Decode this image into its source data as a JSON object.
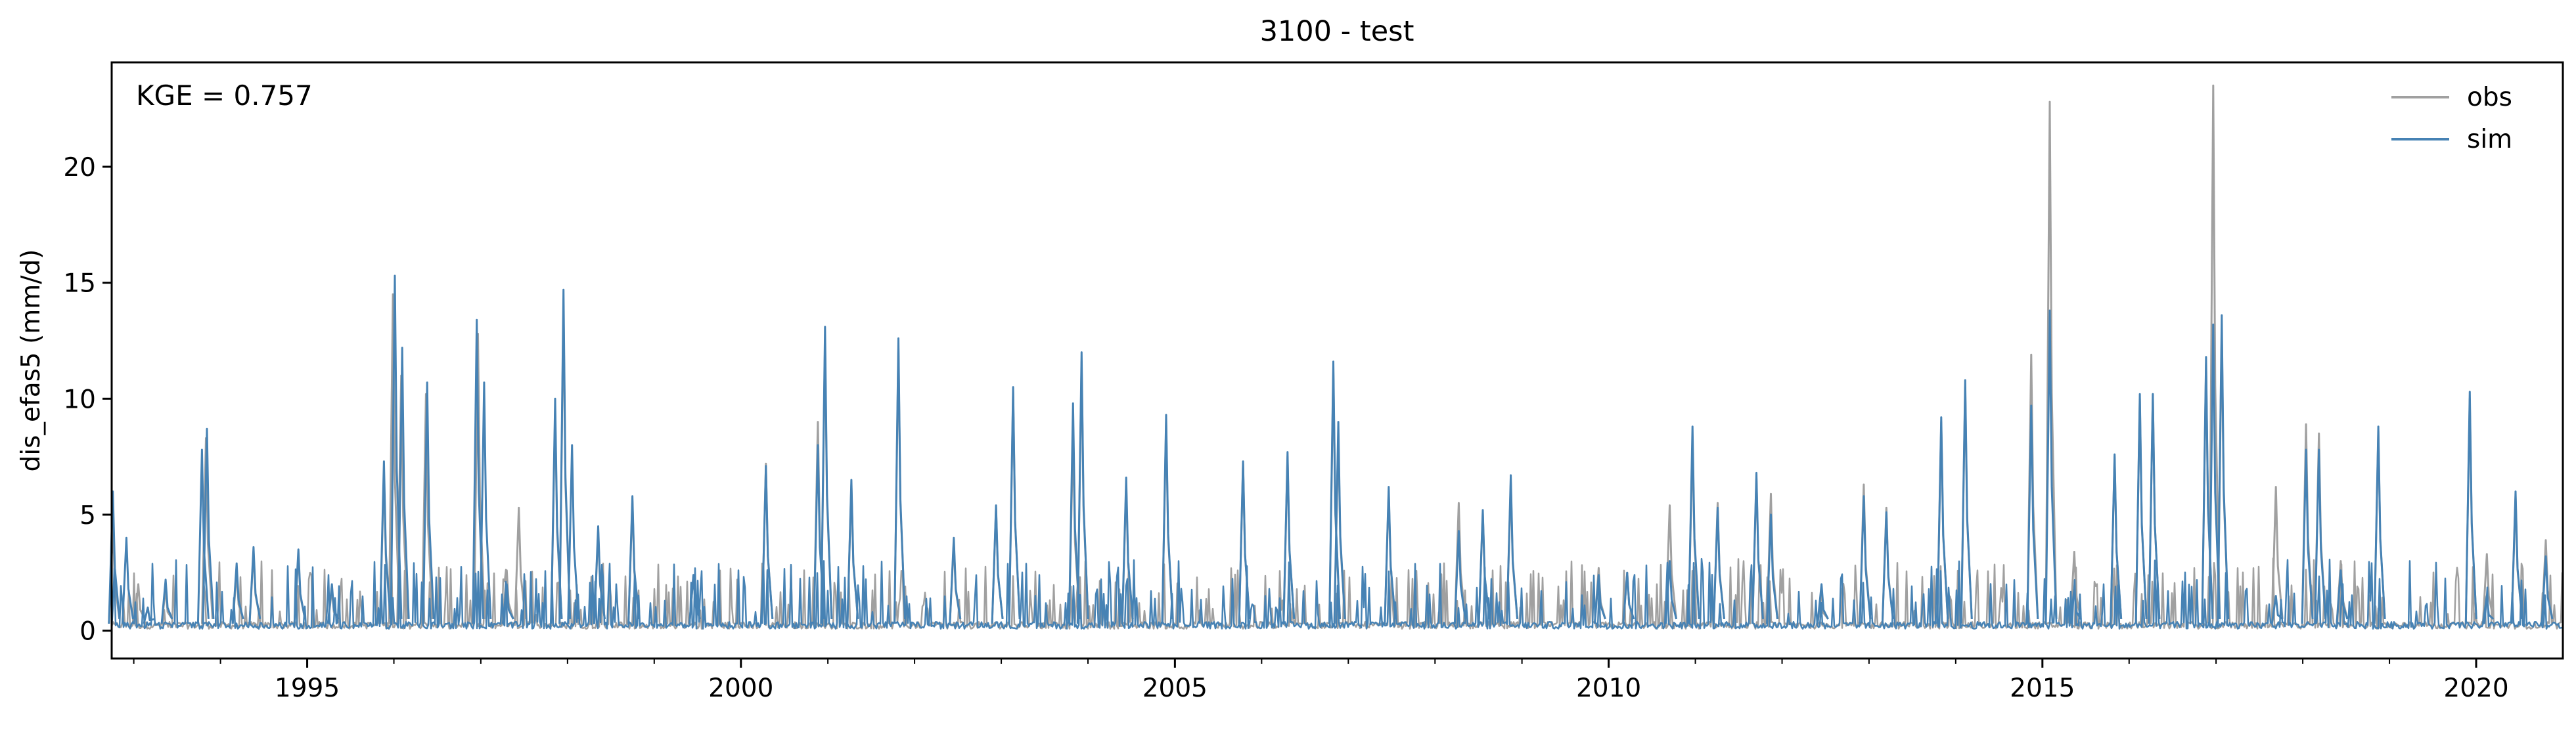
{
  "chart_data": {
    "type": "line",
    "title": "3100 - test",
    "xlabel": "",
    "ylabel": "dis_efas5 (mm/d)",
    "annotation": "KGE = 0.757",
    "xlim": [
      "1992-09-30",
      "2020-12-31"
    ],
    "ylim": [
      -1.2,
      24.5
    ],
    "x_ticks": [
      {
        "date": "1995-01-01",
        "label": "1995"
      },
      {
        "date": "2000-01-01",
        "label": "2000"
      },
      {
        "date": "2005-01-01",
        "label": "2005"
      },
      {
        "date": "2010-01-01",
        "label": "2010"
      },
      {
        "date": "2015-01-01",
        "label": "2015"
      },
      {
        "date": "2020-01-01",
        "label": "2020"
      }
    ],
    "y_ticks": [
      0,
      5,
      10,
      15,
      20
    ],
    "y_tick_labels": [
      "0",
      "5",
      "10",
      "15",
      "20"
    ],
    "legend": {
      "position": "top-right",
      "frame": false
    },
    "grid": false,
    "series": [
      {
        "name": "obs",
        "color": "#a0a0a0",
        "points": [
          [
            "1992-10-05",
            4.5
          ],
          [
            "1993-01-20",
            2.0
          ],
          [
            "1993-05-15",
            1.8
          ],
          [
            "1993-11-01",
            8.3
          ],
          [
            "1994-03-10",
            2.5
          ],
          [
            "1994-05-20",
            3.4
          ],
          [
            "1994-11-25",
            3.3
          ],
          [
            "1995-04-15",
            1.8
          ],
          [
            "1995-11-20",
            6.8
          ],
          [
            "1995-12-28",
            14.5
          ],
          [
            "1996-02-01",
            11.0
          ],
          [
            "1996-05-15",
            10.2
          ],
          [
            "1996-12-20",
            12.8
          ],
          [
            "1997-04-20",
            2.6
          ],
          [
            "1997-06-10",
            5.3
          ],
          [
            "1997-11-10",
            9.5
          ],
          [
            "1997-12-15",
            14.0
          ],
          [
            "1998-05-10",
            4.3
          ],
          [
            "1998-10-01",
            5.6
          ],
          [
            "1999-06-15",
            2.4
          ],
          [
            "2000-04-15",
            7.2
          ],
          [
            "2000-11-20",
            9.0
          ],
          [
            "2000-12-20",
            12.5
          ],
          [
            "2001-04-10",
            6.3
          ],
          [
            "2001-10-25",
            12.2
          ],
          [
            "2002-06-15",
            3.8
          ],
          [
            "2002-12-10",
            5.3
          ],
          [
            "2003-02-20",
            10.3
          ],
          [
            "2003-10-30",
            8.5
          ],
          [
            "2003-12-05",
            11.6
          ],
          [
            "2004-06-10",
            6.3
          ],
          [
            "2004-11-25",
            9.0
          ],
          [
            "2005-10-15",
            7.2
          ],
          [
            "2006-04-20",
            7.5
          ],
          [
            "2006-10-30",
            11.2
          ],
          [
            "2006-11-20",
            8.5
          ],
          [
            "2007-06-20",
            6.0
          ],
          [
            "2008-04-10",
            5.5
          ],
          [
            "2008-07-20",
            5.1
          ],
          [
            "2008-11-15",
            6.4
          ],
          [
            "2009-11-20",
            2.7
          ],
          [
            "2010-03-20",
            2.5
          ],
          [
            "2010-09-15",
            5.4
          ],
          [
            "2010-12-20",
            8.2
          ],
          [
            "2011-04-05",
            5.5
          ],
          [
            "2011-09-15",
            6.6
          ],
          [
            "2011-11-15",
            5.9
          ],
          [
            "2012-06-15",
            1.7
          ],
          [
            "2012-12-10",
            6.3
          ],
          [
            "2013-03-15",
            5.3
          ],
          [
            "2013-11-01",
            9.0
          ],
          [
            "2014-02-10",
            10.5
          ],
          [
            "2014-11-15",
            11.9
          ],
          [
            "2015-02-01",
            22.8
          ],
          [
            "2015-05-15",
            3.4
          ],
          [
            "2015-11-01",
            7.5
          ],
          [
            "2016-02-15",
            10.0
          ],
          [
            "2016-04-10",
            10.2
          ],
          [
            "2016-11-20",
            11.5
          ],
          [
            "2016-12-20",
            23.5
          ],
          [
            "2017-01-25",
            13.0
          ],
          [
            "2017-09-10",
            6.2
          ],
          [
            "2018-01-15",
            8.9
          ],
          [
            "2018-03-10",
            8.5
          ],
          [
            "2018-06-10",
            3.0
          ],
          [
            "2018-11-15",
            8.6
          ],
          [
            "2019-12-05",
            10.0
          ],
          [
            "2020-02-15",
            3.3
          ],
          [
            "2020-06-15",
            5.8
          ],
          [
            "2020-10-20",
            3.9
          ]
        ]
      },
      {
        "name": "sim",
        "color": "#4682b4",
        "points": [
          [
            "1992-10-05",
            6.0
          ],
          [
            "1992-12-01",
            4.0
          ],
          [
            "1993-03-01",
            1.0
          ],
          [
            "1993-05-15",
            2.2
          ],
          [
            "1993-10-15",
            7.8
          ],
          [
            "1993-11-05",
            8.7
          ],
          [
            "1994-03-10",
            2.9
          ],
          [
            "1994-05-20",
            3.6
          ],
          [
            "1994-11-25",
            3.5
          ],
          [
            "1995-04-15",
            2.0
          ],
          [
            "1995-11-20",
            7.3
          ],
          [
            "1996-01-05",
            15.3
          ],
          [
            "1996-02-05",
            12.2
          ],
          [
            "1996-05-20",
            10.7
          ],
          [
            "1996-12-15",
            13.4
          ],
          [
            "1997-01-15",
            10.7
          ],
          [
            "1997-04-20",
            2.0
          ],
          [
            "1997-11-10",
            10.0
          ],
          [
            "1997-12-15",
            14.7
          ],
          [
            "1998-01-20",
            8.0
          ],
          [
            "1998-05-10",
            4.5
          ],
          [
            "1998-10-01",
            5.8
          ],
          [
            "1999-06-15",
            2.4
          ],
          [
            "2000-04-15",
            7.1
          ],
          [
            "2000-11-20",
            8.0
          ],
          [
            "2000-12-20",
            13.1
          ],
          [
            "2001-04-10",
            6.5
          ],
          [
            "2001-10-25",
            12.6
          ],
          [
            "2002-06-15",
            4.0
          ],
          [
            "2002-12-10",
            5.4
          ],
          [
            "2003-02-20",
            10.5
          ],
          [
            "2003-10-30",
            9.8
          ],
          [
            "2003-12-05",
            12.0
          ],
          [
            "2004-06-10",
            6.6
          ],
          [
            "2004-11-25",
            9.3
          ],
          [
            "2005-10-15",
            7.3
          ],
          [
            "2006-04-20",
            7.7
          ],
          [
            "2006-10-30",
            11.6
          ],
          [
            "2006-11-20",
            9.0
          ],
          [
            "2007-06-20",
            6.2
          ],
          [
            "2008-04-10",
            4.3
          ],
          [
            "2008-07-20",
            5.2
          ],
          [
            "2008-11-15",
            6.7
          ],
          [
            "2009-11-20",
            2.4
          ],
          [
            "2010-03-20",
            2.5
          ],
          [
            "2010-09-15",
            3.0
          ],
          [
            "2010-12-20",
            8.8
          ],
          [
            "2011-04-05",
            5.3
          ],
          [
            "2011-09-15",
            6.8
          ],
          [
            "2011-11-15",
            5.0
          ],
          [
            "2012-06-15",
            2.0
          ],
          [
            "2012-12-10",
            5.8
          ],
          [
            "2013-03-15",
            5.1
          ],
          [
            "2013-11-01",
            9.2
          ],
          [
            "2014-02-10",
            10.8
          ],
          [
            "2014-11-15",
            9.7
          ],
          [
            "2015-02-01",
            13.8
          ],
          [
            "2015-05-15",
            1.8
          ],
          [
            "2015-11-01",
            7.6
          ],
          [
            "2016-02-15",
            10.2
          ],
          [
            "2016-04-10",
            10.2
          ],
          [
            "2016-11-20",
            11.8
          ],
          [
            "2016-12-20",
            13.2
          ],
          [
            "2017-01-25",
            13.6
          ],
          [
            "2017-09-10",
            1.5
          ],
          [
            "2018-01-15",
            7.8
          ],
          [
            "2018-03-10",
            7.8
          ],
          [
            "2018-06-10",
            2.6
          ],
          [
            "2018-11-15",
            8.8
          ],
          [
            "2019-12-05",
            10.3
          ],
          [
            "2020-02-15",
            1.5
          ],
          [
            "2020-06-15",
            6.0
          ],
          [
            "2020-10-20",
            3.2
          ]
        ]
      }
    ]
  }
}
